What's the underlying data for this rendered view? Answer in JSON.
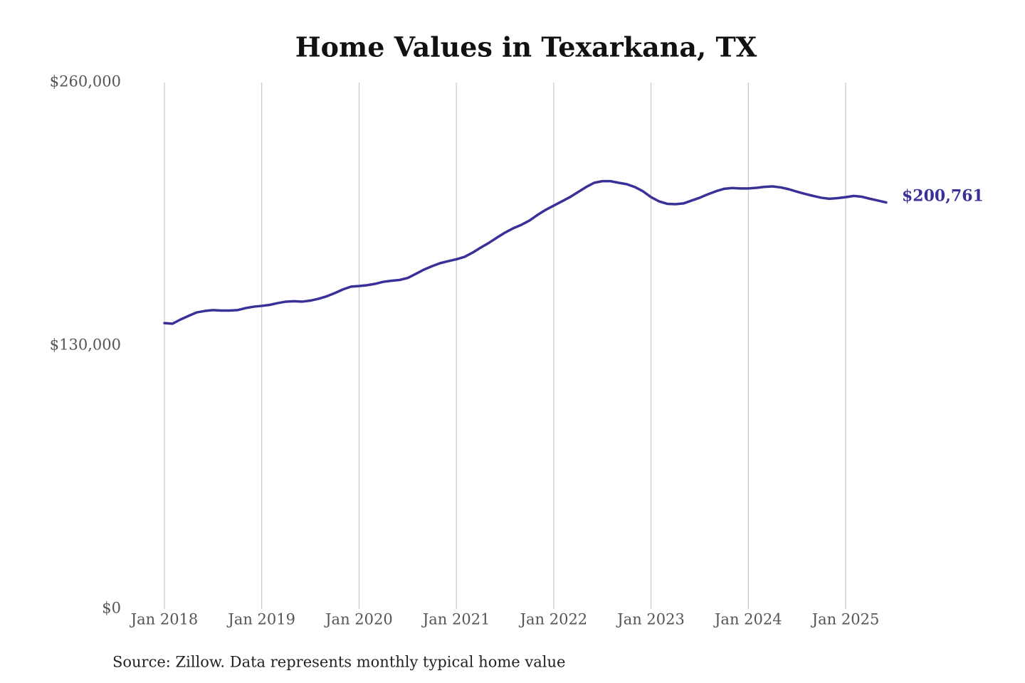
{
  "chart_data": {
    "type": "line",
    "title": "Home Values in Texarkana, TX",
    "source": "Source: Zillow. Data represents monthly typical home value",
    "color": "#3a3198",
    "x": [
      "2018-01",
      "2018-02",
      "2018-03",
      "2018-04",
      "2018-05",
      "2018-06",
      "2018-07",
      "2018-08",
      "2018-09",
      "2018-10",
      "2018-11",
      "2018-12",
      "2019-01",
      "2019-02",
      "2019-03",
      "2019-04",
      "2019-05",
      "2019-06",
      "2019-07",
      "2019-08",
      "2019-09",
      "2019-10",
      "2019-11",
      "2019-12",
      "2020-01",
      "2020-02",
      "2020-03",
      "2020-04",
      "2020-05",
      "2020-06",
      "2020-07",
      "2020-08",
      "2020-09",
      "2020-10",
      "2020-11",
      "2020-12",
      "2021-01",
      "2021-02",
      "2021-03",
      "2021-04",
      "2021-05",
      "2021-06",
      "2021-07",
      "2021-08",
      "2021-09",
      "2021-10",
      "2021-11",
      "2021-12",
      "2022-01",
      "2022-02",
      "2022-03",
      "2022-04",
      "2022-05",
      "2022-06",
      "2022-07",
      "2022-08",
      "2022-09",
      "2022-10",
      "2022-11",
      "2022-12",
      "2023-01",
      "2023-02",
      "2023-03",
      "2023-04",
      "2023-05",
      "2023-06",
      "2023-07",
      "2023-08",
      "2023-09",
      "2023-10",
      "2023-11",
      "2023-12",
      "2024-01",
      "2024-02",
      "2024-03",
      "2024-04",
      "2024-05",
      "2024-06",
      "2024-07",
      "2024-08",
      "2024-09",
      "2024-10",
      "2024-11",
      "2024-12",
      "2025-01",
      "2025-02",
      "2025-03",
      "2025-04",
      "2025-05",
      "2025-06"
    ],
    "values": [
      141200,
      140900,
      143000,
      144800,
      146500,
      147200,
      147600,
      147400,
      147400,
      147600,
      148600,
      149300,
      149700,
      150200,
      151100,
      151800,
      152000,
      151800,
      152300,
      153200,
      154400,
      156000,
      157800,
      159200,
      159500,
      159900,
      160600,
      161600,
      162100,
      162500,
      163500,
      165500,
      167600,
      169300,
      170800,
      171800,
      172700,
      173900,
      176000,
      178500,
      180800,
      183400,
      185900,
      188000,
      189700,
      191800,
      194600,
      197100,
      199200,
      201300,
      203400,
      205900,
      208400,
      210500,
      211300,
      211300,
      210500,
      209800,
      208400,
      206300,
      203400,
      201300,
      200100,
      199900,
      200300,
      201700,
      203100,
      204800,
      206300,
      207500,
      207900,
      207700,
      207700,
      208000,
      208500,
      208700,
      208200,
      207300,
      206100,
      205000,
      204000,
      203100,
      202600,
      202900,
      203400,
      204000,
      203600,
      202600,
      201700,
      200761
    ],
    "value_labels": [
      null,
      null,
      null,
      null,
      null,
      null,
      null,
      null,
      null,
      null,
      null,
      null,
      null,
      null,
      null,
      null,
      null,
      null,
      null,
      null,
      null,
      null,
      null,
      null,
      null,
      null,
      null,
      null,
      null,
      null,
      null,
      null,
      null,
      null,
      null,
      null,
      null,
      null,
      null,
      null,
      null,
      null,
      null,
      null,
      null,
      null,
      null,
      null,
      null,
      null,
      null,
      null,
      null,
      null,
      null,
      null,
      null,
      null,
      null,
      null,
      null,
      null,
      null,
      null,
      null,
      null,
      null,
      null,
      null,
      null,
      null,
      null,
      null,
      null,
      null,
      null,
      null,
      null,
      null,
      null,
      null,
      null,
      null,
      null,
      null,
      null,
      null,
      null,
      null,
      "$200,761"
    ],
    "xlim": [
      "2018-01",
      "2025-06"
    ],
    "xticks": [
      {
        "value": "2018-01",
        "label": "Jan 2018"
      },
      {
        "value": "2019-01",
        "label": "Jan 2019"
      },
      {
        "value": "2020-01",
        "label": "Jan 2020"
      },
      {
        "value": "2021-01",
        "label": "Jan 2021"
      },
      {
        "value": "2022-01",
        "label": "Jan 2022"
      },
      {
        "value": "2023-01",
        "label": "Jan 2023"
      },
      {
        "value": "2024-01",
        "label": "Jan 2024"
      },
      {
        "value": "2025-01",
        "label": "Jan 2025"
      }
    ],
    "ylim": [
      0,
      260000
    ],
    "yticks": [
      {
        "value": 0,
        "label": "$0"
      },
      {
        "value": 130000,
        "label": "$130,000"
      },
      {
        "value": 260000,
        "label": "$260,000"
      }
    ],
    "grid": "x"
  }
}
